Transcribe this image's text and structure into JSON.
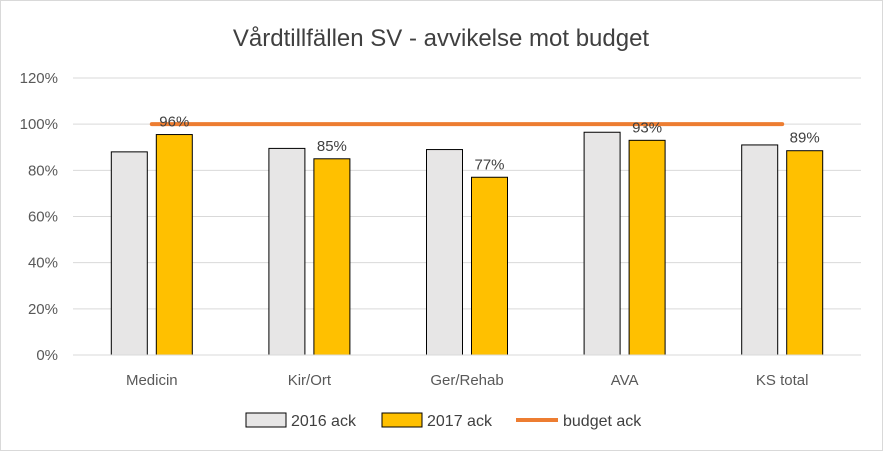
{
  "chart_data": {
    "type": "bar",
    "title": "Vårdtillfällen SV - avvikelse mot budget",
    "categories": [
      "Medicin",
      "Kir/Ort",
      "Ger/Rehab",
      "AVA",
      "KS total"
    ],
    "series": [
      {
        "name": "2016 ack",
        "type": "bar",
        "values": [
          0.88,
          0.895,
          0.89,
          0.965,
          0.91
        ],
        "color": "#e7e6e6",
        "data_labels": [
          "",
          "",
          "",
          "",
          ""
        ]
      },
      {
        "name": "2017 ack",
        "type": "bar",
        "values": [
          0.955,
          0.85,
          0.77,
          0.93,
          0.885
        ],
        "color": "#ffc000",
        "data_labels": [
          "96%",
          "85%",
          "77%",
          "93%",
          "89%"
        ]
      },
      {
        "name": "budget ack",
        "type": "line",
        "values": [
          1.0,
          1.0,
          1.0,
          1.0,
          1.0
        ],
        "color": "#ed7d31"
      }
    ],
    "yticks": [
      "0%",
      "20%",
      "40%",
      "60%",
      "80%",
      "100%",
      "120%"
    ],
    "ylim": [
      0,
      1.2
    ],
    "grid": true,
    "legend_position": "bottom"
  }
}
